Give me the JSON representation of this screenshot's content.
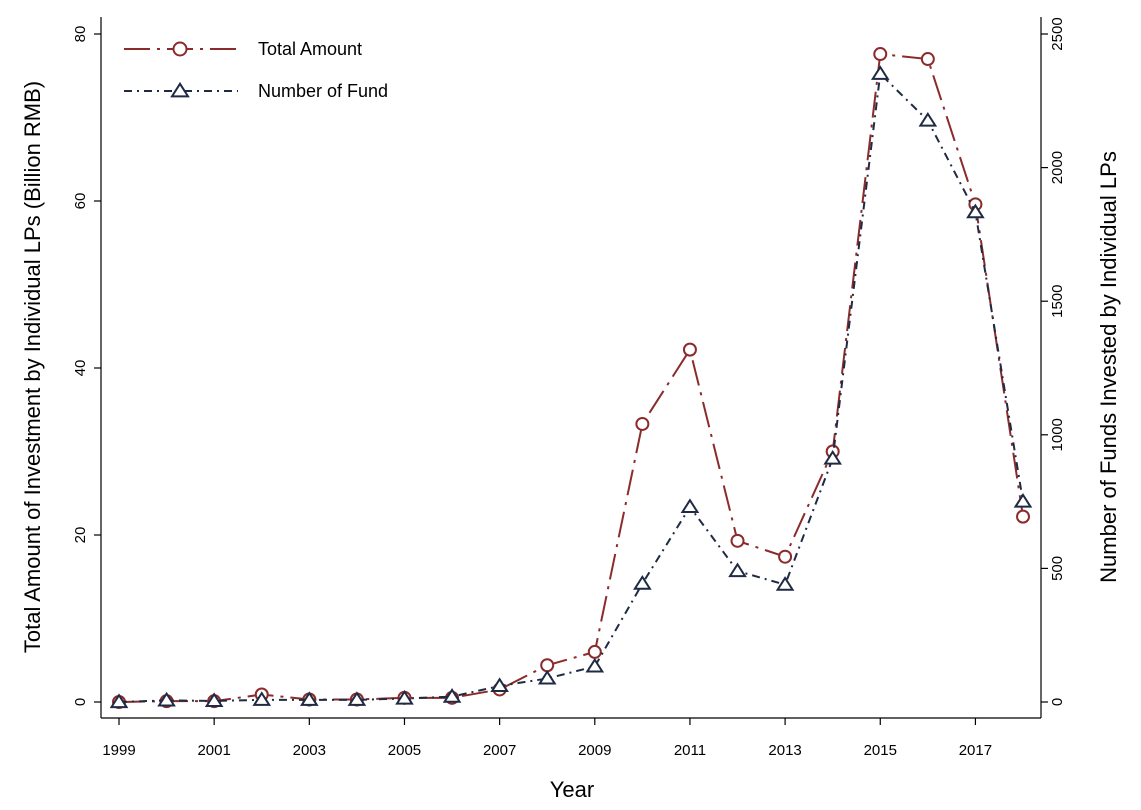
{
  "chart_data": {
    "type": "line",
    "xlabel": "Year",
    "ylabel_left": "Total Amount of Investment by Individual LPs (Billion RMB)",
    "ylabel_right": "Number of Funds Invested by Individual LPs",
    "x": [
      1999,
      2000,
      2001,
      2002,
      2003,
      2004,
      2005,
      2006,
      2007,
      2008,
      2009,
      2010,
      2011,
      2012,
      2013,
      2014,
      2015,
      2016,
      2017,
      2018
    ],
    "x_tick_labels": [
      "1999",
      "2001",
      "2003",
      "2005",
      "2007",
      "2009",
      "2011",
      "2013",
      "2015",
      "2017"
    ],
    "ylim_left": [
      0,
      80
    ],
    "yticks_left": [
      "0",
      "20",
      "40",
      "60",
      "80"
    ],
    "ylim_right": [
      0,
      2500
    ],
    "yticks_right": [
      "0",
      "500",
      "1000",
      "1500",
      "2000",
      "2500"
    ],
    "grid": false,
    "legend_position": "top-left",
    "series": [
      {
        "name": "Total Amount",
        "axis": "left",
        "marker": "circle",
        "color": "#8b2b2b",
        "line_style": "long-dash-dot",
        "values": [
          0.0,
          0.1,
          0.1,
          0.9,
          0.3,
          0.3,
          0.5,
          0.5,
          1.5,
          4.4,
          6.0,
          33.3,
          42.2,
          19.3,
          17.4,
          30.0,
          77.6,
          77.0,
          59.6,
          22.2
        ]
      },
      {
        "name": "Number of Fund",
        "axis": "right",
        "marker": "triangle",
        "color": "#1f2a44",
        "line_style": "dash-dot",
        "values": [
          0,
          6,
          4,
          8,
          8,
          8,
          13,
          20,
          60,
          88,
          133,
          443,
          730,
          490,
          439,
          911,
          2351,
          2176,
          1833,
          750
        ]
      }
    ]
  }
}
